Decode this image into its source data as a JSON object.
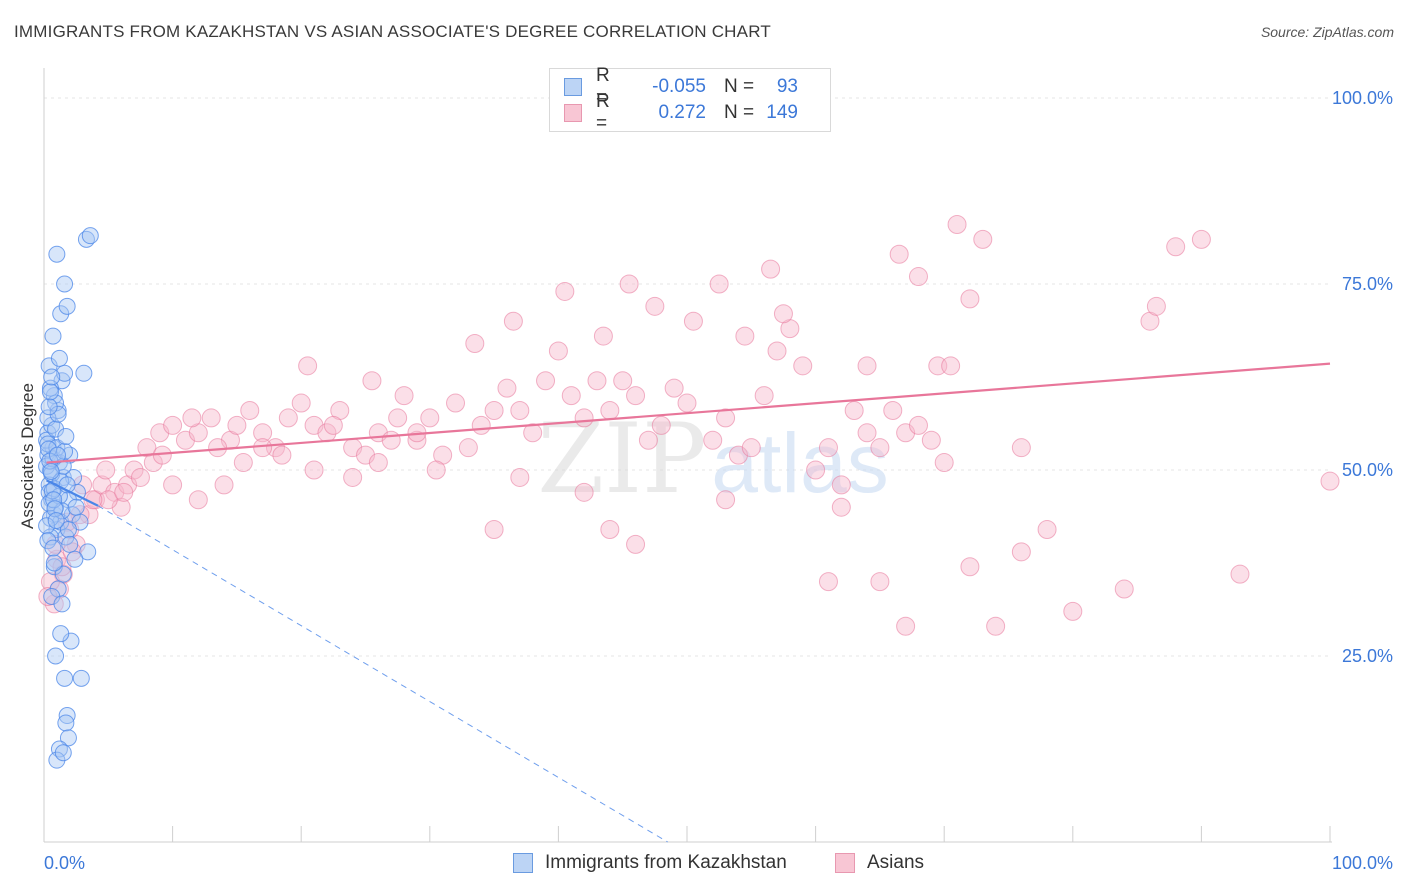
{
  "title": "IMMIGRANTS FROM KAZAKHSTAN VS ASIAN ASSOCIATE'S DEGREE CORRELATION CHART",
  "source": "Source: ZipAtlas.com",
  "watermark": {
    "zip": "ZIP",
    "atlas": "atlas"
  },
  "legend": {
    "rows": [
      {
        "label": "R =",
        "r": "-0.055",
        "n_label": "N =",
        "n": "93",
        "fill": "#bcd4f5",
        "stroke": "#6a9be0"
      },
      {
        "label": "R =",
        "r": "0.272",
        "n_label": "N =",
        "n": "149",
        "fill": "#f8c6d4",
        "stroke": "#e898b0"
      }
    ]
  },
  "bottom_legend": {
    "kazakhstan": "Immigrants from Kazakhstan",
    "asians": "Asians"
  },
  "colors": {
    "blue": "#4a86e8",
    "blue_fill": "#a8c8f5",
    "pink": "#e8769a",
    "pink_fill": "#f6b9cb",
    "grid": "#e6e6e6",
    "axis_label": "#3c78d8"
  },
  "chart_data": {
    "type": "scatter",
    "title": "IMMIGRANTS FROM KAZAKHSTAN VS ASIAN ASSOCIATE'S DEGREE CORRELATION CHART",
    "xlabel": "",
    "ylabel": "Associate's Degree",
    "xlim": [
      0,
      100
    ],
    "ylim": [
      0,
      105
    ],
    "x_tick_labels": [
      "0.0%",
      "100.0%"
    ],
    "y_ticks": [
      25,
      50,
      75,
      100
    ],
    "y_tick_labels": [
      "25.0%",
      "50.0%",
      "75.0%",
      "100.0%"
    ],
    "grid": true,
    "series": [
      {
        "name": "Immigrants from Kazakhstan",
        "R": -0.055,
        "N": 93,
        "trend_solid": {
          "x": [
            0.2,
            4.2
          ],
          "y": [
            48.6,
            45.2
          ]
        },
        "trend_dashed": {
          "x": [
            4.2,
            48.5
          ],
          "y": [
            45.2,
            0
          ]
        },
        "points": [
          [
            0.3,
            52
          ],
          [
            0.5,
            50
          ],
          [
            0.4,
            48
          ],
          [
            0.6,
            46
          ],
          [
            0.8,
            44
          ],
          [
            1.0,
            42
          ],
          [
            0.3,
            55
          ],
          [
            0.7,
            53
          ],
          [
            1.2,
            51
          ],
          [
            1.5,
            49
          ],
          [
            0.4,
            47
          ],
          [
            0.9,
            45
          ],
          [
            1.3,
            43
          ],
          [
            0.5,
            41
          ],
          [
            0.2,
            54
          ],
          [
            0.6,
            56
          ],
          [
            1.1,
            58
          ],
          [
            0.8,
            60
          ],
          [
            1.4,
            62
          ],
          [
            0.3,
            57
          ],
          [
            0.9,
            59
          ],
          [
            0.5,
            61
          ],
          [
            1.6,
            63
          ],
          [
            0.4,
            64
          ],
          [
            1.2,
            65
          ],
          [
            0.7,
            68
          ],
          [
            1.3,
            71
          ],
          [
            1.8,
            72
          ],
          [
            1.6,
            75
          ],
          [
            1.0,
            79
          ],
          [
            3.3,
            81
          ],
          [
            3.6,
            81.5
          ],
          [
            3.1,
            63
          ],
          [
            2.0,
            52
          ],
          [
            2.3,
            49
          ],
          [
            2.6,
            47
          ],
          [
            1.9,
            46
          ],
          [
            2.2,
            44
          ],
          [
            2.8,
            43
          ],
          [
            1.7,
            41
          ],
          [
            3.4,
            39
          ],
          [
            0.8,
            37
          ],
          [
            1.5,
            36
          ],
          [
            1.1,
            34
          ],
          [
            0.6,
            33
          ],
          [
            1.4,
            32
          ],
          [
            2.1,
            27
          ],
          [
            1.3,
            28
          ],
          [
            0.9,
            25
          ],
          [
            1.6,
            22
          ],
          [
            2.9,
            22
          ],
          [
            1.8,
            17
          ],
          [
            1.7,
            16
          ],
          [
            1.9,
            14
          ],
          [
            1.2,
            12.5
          ],
          [
            1.0,
            11
          ],
          [
            1.5,
            12
          ],
          [
            0.2,
            50.5
          ],
          [
            0.3,
            53.5
          ],
          [
            0.4,
            45.5
          ],
          [
            0.5,
            43.5
          ],
          [
            0.6,
            49.5
          ],
          [
            0.7,
            51.5
          ],
          [
            0.8,
            47.5
          ],
          [
            0.9,
            55.5
          ],
          [
            1.0,
            53
          ],
          [
            1.1,
            57.5
          ],
          [
            1.2,
            46.5
          ],
          [
            1.3,
            48.5
          ],
          [
            1.4,
            44.5
          ],
          [
            0.2,
            42.5
          ],
          [
            0.3,
            40.5
          ],
          [
            0.4,
            58.5
          ],
          [
            0.5,
            60.5
          ],
          [
            0.6,
            62.5
          ],
          [
            0.7,
            39.5
          ],
          [
            0.8,
            37.5
          ],
          [
            1.5,
            50.5
          ],
          [
            1.6,
            52.5
          ],
          [
            1.7,
            54.5
          ],
          [
            1.8,
            48
          ],
          [
            1.9,
            42
          ],
          [
            2.0,
            40
          ],
          [
            2.4,
            38
          ],
          [
            2.5,
            45
          ],
          [
            0.35,
            52.8
          ],
          [
            0.45,
            51.2
          ],
          [
            0.55,
            49.8
          ],
          [
            0.65,
            47.2
          ],
          [
            0.75,
            46
          ],
          [
            0.85,
            44.8
          ],
          [
            0.95,
            43.2
          ],
          [
            1.05,
            52
          ]
        ]
      },
      {
        "name": "Asians",
        "R": 0.272,
        "N": 149,
        "trend_solid": {
          "x": [
            0.2,
            100
          ],
          "y": [
            51,
            64.3
          ]
        },
        "points": [
          [
            0.8,
            32
          ],
          [
            1.2,
            34
          ],
          [
            1.5,
            36
          ],
          [
            1.0,
            38
          ],
          [
            2.5,
            40
          ],
          [
            2.0,
            42
          ],
          [
            3.5,
            44
          ],
          [
            4.0,
            46
          ],
          [
            4.5,
            48
          ],
          [
            5.5,
            47
          ],
          [
            6.5,
            48
          ],
          [
            7.0,
            50
          ],
          [
            8.0,
            53
          ],
          [
            9.0,
            55
          ],
          [
            10.0,
            56
          ],
          [
            11.0,
            54
          ],
          [
            12.0,
            55
          ],
          [
            13.0,
            57
          ],
          [
            14.5,
            54
          ],
          [
            15.0,
            56
          ],
          [
            16.0,
            58
          ],
          [
            17.0,
            55
          ],
          [
            18.0,
            53
          ],
          [
            19.0,
            57
          ],
          [
            20.0,
            59
          ],
          [
            21.0,
            56
          ],
          [
            22.0,
            55
          ],
          [
            23.0,
            58
          ],
          [
            24.0,
            53
          ],
          [
            25.0,
            52
          ],
          [
            26.0,
            55
          ],
          [
            27.0,
            54
          ],
          [
            28.0,
            60
          ],
          [
            29.0,
            54
          ],
          [
            30.0,
            57
          ],
          [
            31.0,
            52
          ],
          [
            32.0,
            59
          ],
          [
            33.0,
            53
          ],
          [
            34.0,
            56
          ],
          [
            35.0,
            58
          ],
          [
            36.0,
            61
          ],
          [
            37.0,
            58
          ],
          [
            38.0,
            55
          ],
          [
            39.0,
            62
          ],
          [
            40.0,
            66
          ],
          [
            41.0,
            60
          ],
          [
            42.0,
            57
          ],
          [
            43.0,
            62
          ],
          [
            44.0,
            58
          ],
          [
            45.0,
            62
          ],
          [
            46.0,
            60
          ],
          [
            47.0,
            54
          ],
          [
            48.0,
            56
          ],
          [
            49.0,
            61
          ],
          [
            50.0,
            59
          ],
          [
            52.0,
            54
          ],
          [
            53.0,
            57
          ],
          [
            54.0,
            52
          ],
          [
            55.0,
            53
          ],
          [
            56.0,
            60
          ],
          [
            57.0,
            66
          ],
          [
            58.0,
            69
          ],
          [
            59.0,
            64
          ],
          [
            60.0,
            50
          ],
          [
            61.0,
            53
          ],
          [
            62.0,
            48
          ],
          [
            63.0,
            58
          ],
          [
            64.0,
            55
          ],
          [
            65.0,
            53
          ],
          [
            66.0,
            58
          ],
          [
            67.0,
            55
          ],
          [
            68.0,
            56
          ],
          [
            69.0,
            54
          ],
          [
            70.0,
            51
          ],
          [
            72.0,
            37
          ],
          [
            74.0,
            29
          ],
          [
            76.0,
            39
          ],
          [
            78.0,
            42
          ],
          [
            80.0,
            31
          ],
          [
            84.0,
            34
          ],
          [
            86.0,
            70
          ],
          [
            88.0,
            80
          ],
          [
            90.0,
            81
          ],
          [
            86.5,
            72
          ],
          [
            93.0,
            36
          ],
          [
            71.0,
            83
          ],
          [
            73.0,
            81
          ],
          [
            66.5,
            79
          ],
          [
            72.0,
            73
          ],
          [
            68.0,
            76
          ],
          [
            69.5,
            64
          ],
          [
            70.5,
            64
          ],
          [
            76.0,
            53
          ],
          [
            64.0,
            64
          ],
          [
            62.0,
            45
          ],
          [
            61.0,
            35
          ],
          [
            65.0,
            35
          ],
          [
            67.0,
            29
          ],
          [
            100.0,
            48.5
          ],
          [
            46.0,
            40
          ],
          [
            53.0,
            46
          ],
          [
            44.0,
            42
          ],
          [
            42.0,
            47
          ],
          [
            37.0,
            49
          ],
          [
            35.0,
            42
          ],
          [
            29.0,
            55
          ],
          [
            26.0,
            51
          ],
          [
            24.0,
            49
          ],
          [
            21.0,
            50
          ],
          [
            17.0,
            53
          ],
          [
            14.0,
            48
          ],
          [
            12.0,
            46
          ],
          [
            10.0,
            48
          ],
          [
            8.5,
            51
          ],
          [
            7.5,
            49
          ],
          [
            6.0,
            45
          ],
          [
            5.0,
            46
          ],
          [
            3.0,
            48
          ],
          [
            2.8,
            44
          ],
          [
            1.8,
            43
          ],
          [
            0.9,
            40
          ],
          [
            0.5,
            35
          ],
          [
            0.3,
            33
          ],
          [
            1.4,
            37
          ],
          [
            2.2,
            39
          ],
          [
            3.8,
            46
          ],
          [
            4.8,
            50
          ],
          [
            6.2,
            47
          ],
          [
            9.2,
            52
          ],
          [
            11.5,
            57
          ],
          [
            13.5,
            53
          ],
          [
            15.5,
            51
          ],
          [
            18.5,
            52
          ],
          [
            20.5,
            64
          ],
          [
            22.5,
            56
          ],
          [
            25.5,
            62
          ],
          [
            27.5,
            57
          ],
          [
            30.5,
            50
          ],
          [
            33.5,
            67
          ],
          [
            36.5,
            70
          ],
          [
            40.5,
            74
          ],
          [
            43.5,
            68
          ],
          [
            45.5,
            75
          ],
          [
            47.5,
            72
          ],
          [
            50.5,
            70
          ],
          [
            52.5,
            75
          ],
          [
            54.5,
            68
          ],
          [
            56.5,
            77
          ],
          [
            57.5,
            71
          ]
        ]
      }
    ]
  }
}
